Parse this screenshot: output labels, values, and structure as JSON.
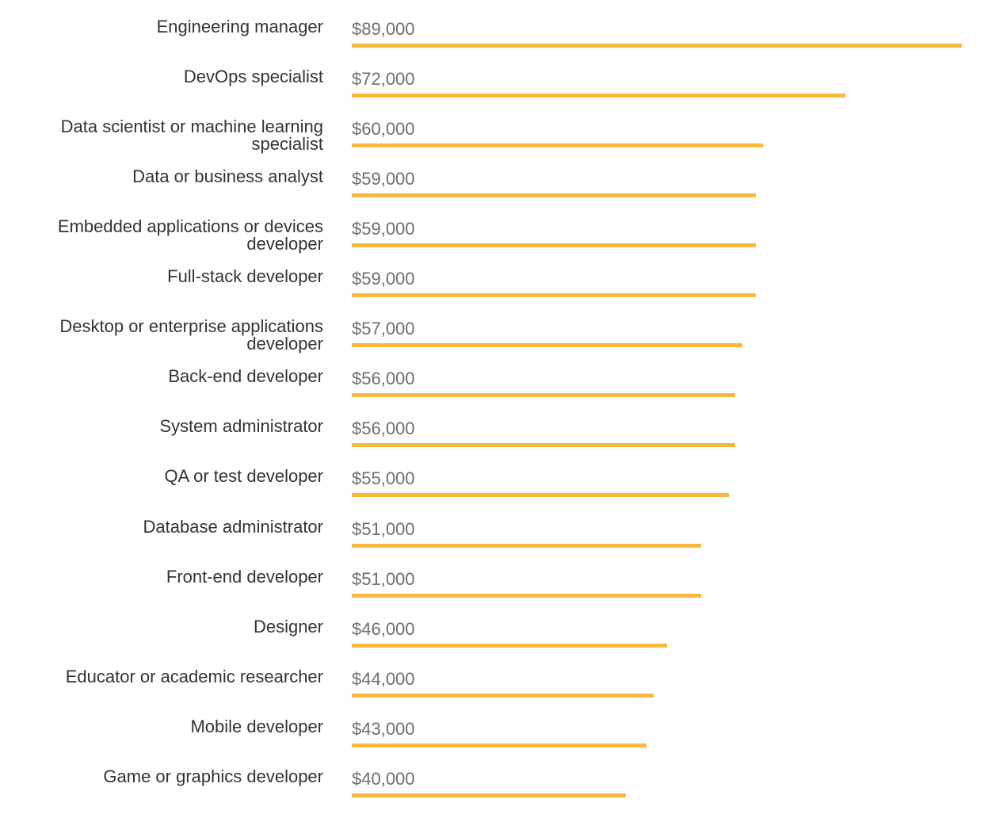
{
  "chart_data": {
    "type": "bar",
    "orientation": "horizontal",
    "bar_color": "#f8b83a",
    "categories": [
      "Engineering manager",
      "DevOps specialist",
      "Data scientist or machine learning specialist",
      "Data or business analyst",
      "Embedded applications or devices developer",
      "Full-stack developer",
      "Desktop or enterprise applications developer",
      "Back-end developer",
      "System administrator",
      "QA or test developer",
      "Database administrator",
      "Front-end developer",
      "Designer",
      "Educator or academic researcher",
      "Mobile developer",
      "Game or graphics developer"
    ],
    "values": [
      89000,
      72000,
      60000,
      59000,
      59000,
      59000,
      57000,
      56000,
      56000,
      55000,
      51000,
      51000,
      46000,
      44000,
      43000,
      40000
    ],
    "value_labels": [
      "$89,000",
      "$72,000",
      "$60,000",
      "$59,000",
      "$59,000",
      "$59,000",
      "$57,000",
      "$56,000",
      "$56,000",
      "$55,000",
      "$51,000",
      "$51,000",
      "$46,000",
      "$44,000",
      "$43,000",
      "$40,000"
    ],
    "xlim": [
      0,
      89000
    ],
    "grid": false,
    "legend": false
  }
}
